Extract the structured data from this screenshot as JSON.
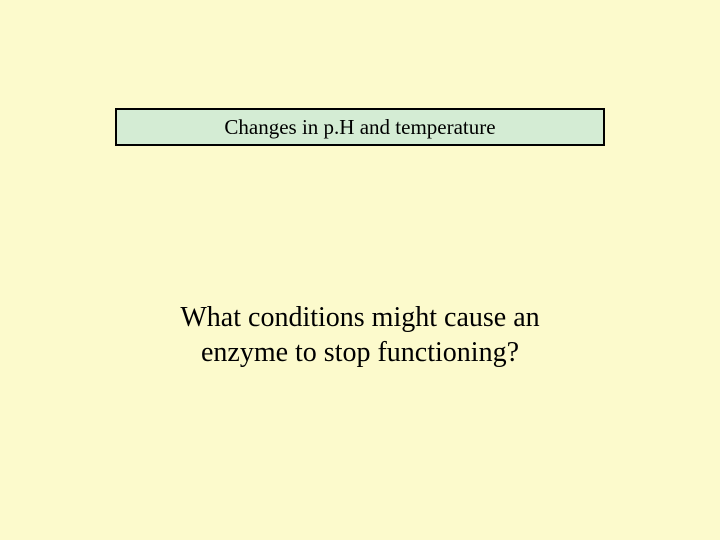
{
  "slide": {
    "background_color": "#fcfacc",
    "answer_box": {
      "text": "Changes in p.H and temperature",
      "background_color": "#d4ecd4",
      "border_color": "#000000",
      "border_width": 2,
      "font_size": 21,
      "font_family": "Times New Roman",
      "text_color": "#000000"
    },
    "question": {
      "line1": "What conditions might cause an",
      "line2": "enzyme to stop functioning?",
      "font_size": 28,
      "font_family": "Times New Roman",
      "text_color": "#000000"
    }
  }
}
